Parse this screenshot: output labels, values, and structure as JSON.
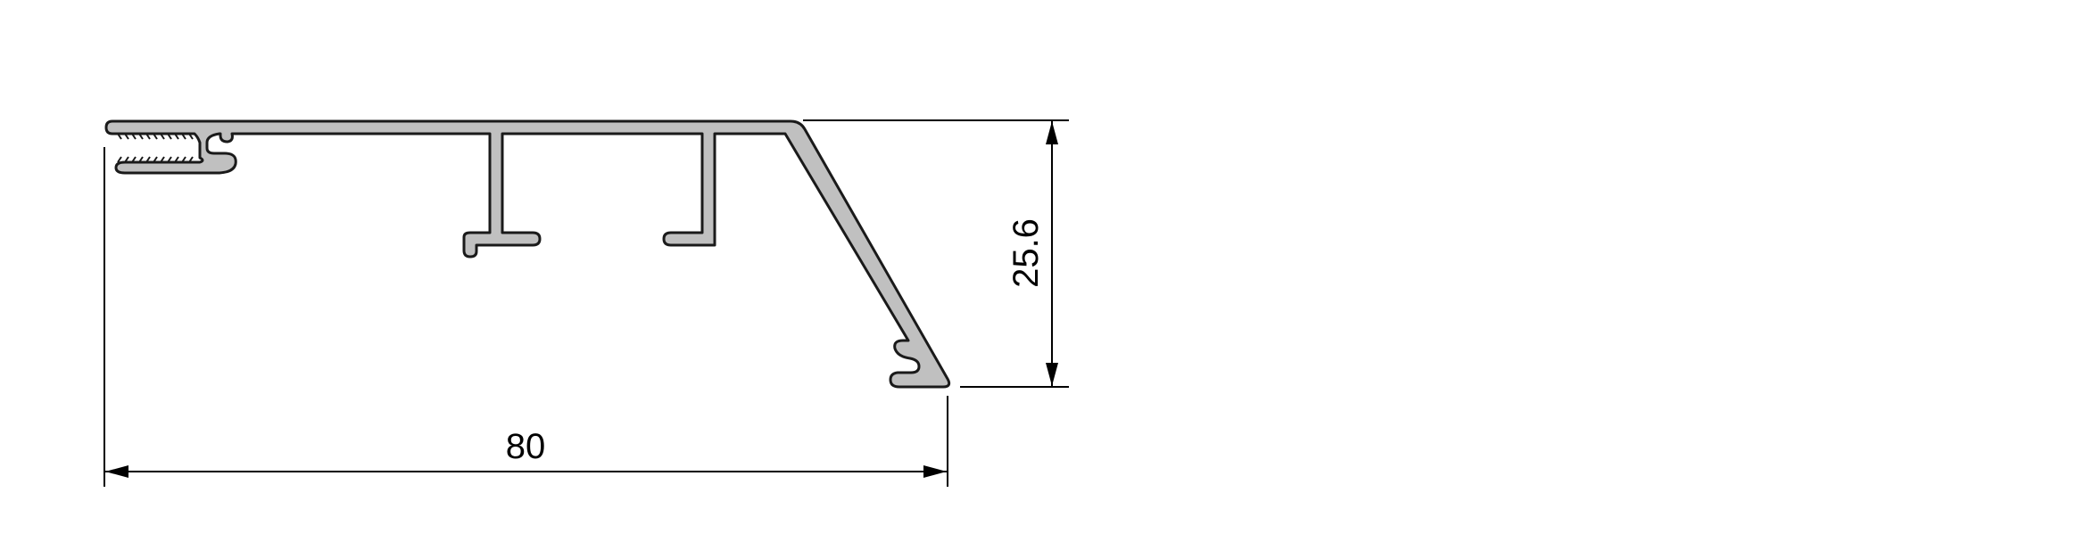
{
  "colors": {
    "background": "#ffffff",
    "profile_fill": "#c0c0c0",
    "profile_outline": "#1a1a1a",
    "dimension_lines": "#000000"
  },
  "dimensions": {
    "width_label": "80",
    "height_label": "25.6"
  }
}
